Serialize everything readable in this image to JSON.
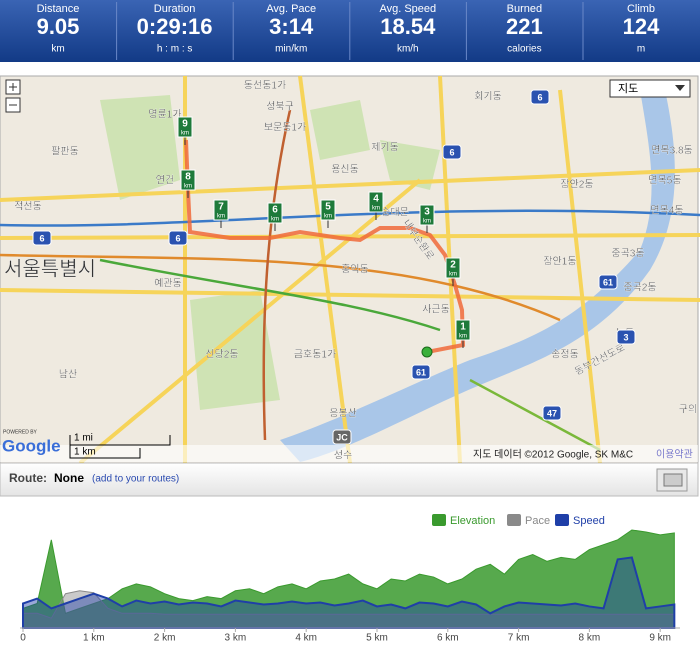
{
  "stats": [
    {
      "label": "Distance",
      "value": 9.05,
      "unit": "km"
    },
    {
      "label": "Duration",
      "value": "0:29:16",
      "unit": "h : m : s"
    },
    {
      "label": "Avg. Pace",
      "value": "3:14",
      "unit": "min/km"
    },
    {
      "label": "Avg. Speed",
      "value": 18.54,
      "unit": "km/h"
    },
    {
      "label": "Burned",
      "value": 221,
      "unit": "calories"
    },
    {
      "label": "Climb",
      "value": 124,
      "unit": "m"
    }
  ],
  "map": {
    "map_type": "지도",
    "labels": [
      "동선동1가",
      "성북구",
      "보문동1가",
      "명륜1가",
      "회기동",
      "제기동",
      "팔판동",
      "연건",
      "적선동",
      "서울특별시",
      "예관동",
      "홍익동",
      "장안2동",
      "장안1동",
      "면목3.8동",
      "면목5동",
      "면목4동",
      "중곡3동",
      "중곡2동",
      "능동",
      "송정동",
      "사근동",
      "신당2동",
      "금호동1가",
      "남산",
      "응봉산",
      "성수",
      "구의",
      "동부간선도로",
      "내부순환로",
      "용신동",
      "숭대문"
    ],
    "shields": [
      "6",
      "6",
      "6",
      "6",
      "61",
      "61",
      "3",
      "47",
      "JC"
    ],
    "markers": [
      {
        "number": 1,
        "unit": "km"
      },
      {
        "number": 2,
        "unit": "km"
      },
      {
        "number": 3,
        "unit": "km"
      },
      {
        "number": 4,
        "unit": "km"
      },
      {
        "number": 5,
        "unit": "km"
      },
      {
        "number": 6,
        "unit": "km"
      },
      {
        "number": 7,
        "unit": "km"
      },
      {
        "number": 8,
        "unit": "km"
      },
      {
        "number": 9,
        "unit": "km"
      }
    ],
    "scale_mi": "1 mi",
    "scale_km": "1 km",
    "powered_by": "POWERED BY",
    "google": "Google",
    "attribution": "지도 데이터 ©2012 Google, SK M&C",
    "terms": "이용약관"
  },
  "route": {
    "label": "Route:",
    "value": "None",
    "link": "(add to your routes)"
  },
  "chart_data": {
    "type": "area",
    "x": [
      0,
      0.2,
      0.4,
      0.6,
      0.8,
      1,
      1.2,
      1.4,
      1.6,
      1.8,
      2,
      2.2,
      2.4,
      2.6,
      2.8,
      3,
      3.2,
      3.4,
      3.6,
      3.8,
      4,
      4.2,
      4.4,
      4.6,
      4.8,
      5,
      5.2,
      5.4,
      5.6,
      5.8,
      6,
      6.2,
      6.4,
      6.6,
      6.8,
      7,
      7.2,
      7.4,
      7.6,
      7.8,
      8,
      8.2,
      8.4,
      8.6,
      8.8,
      9,
      9.2
    ],
    "series": [
      {
        "name": "Elevation",
        "color": "#3a9a2e",
        "values": [
          20,
          25,
          90,
          15,
          20,
          25,
          30,
          40,
          45,
          42,
          35,
          30,
          28,
          32,
          30,
          38,
          40,
          35,
          42,
          45,
          40,
          48,
          50,
          55,
          45,
          40,
          50,
          48,
          55,
          52,
          45,
          50,
          60,
          65,
          55,
          70,
          75,
          68,
          72,
          70,
          80,
          85,
          90,
          100,
          98,
          95,
          97
        ]
      },
      {
        "name": "Pace",
        "color": "#8a8a8a",
        "values": [
          15,
          15,
          10,
          35,
          38,
          36,
          20,
          15,
          15,
          15,
          14,
          14,
          14,
          14,
          14,
          14,
          14,
          14,
          14,
          14,
          14,
          14,
          14,
          14,
          14,
          14,
          14,
          14,
          14,
          14,
          14,
          14,
          14,
          14,
          14,
          14,
          14,
          14,
          14,
          14,
          14,
          14,
          14,
          14,
          14,
          14,
          14
        ]
      },
      {
        "name": "Speed",
        "color": "#1f3fa8",
        "values": [
          25,
          30,
          20,
          25,
          30,
          35,
          30,
          22,
          28,
          25,
          27,
          24,
          26,
          25,
          22,
          28,
          26,
          24,
          25,
          27,
          25,
          26,
          23,
          25,
          28,
          22,
          24,
          20,
          26,
          25,
          22,
          27,
          24,
          15,
          22,
          26,
          25,
          24,
          23,
          25,
          22,
          20,
          70,
          72,
          20,
          22,
          24
        ]
      }
    ],
    "xlim": [
      0,
      9.28
    ],
    "ylim": [
      0,
      100
    ],
    "xticks": [
      {
        "value": 0,
        "label": "0"
      },
      {
        "value": 1,
        "label": "1 km"
      },
      {
        "value": 2,
        "label": "2 km"
      },
      {
        "value": 3,
        "label": "3 km"
      },
      {
        "value": 4,
        "label": "4 km"
      },
      {
        "value": 5,
        "label": "5 km"
      },
      {
        "value": 6,
        "label": "6 km"
      },
      {
        "value": 7,
        "label": "7 km"
      },
      {
        "value": 8,
        "label": "8 km"
      },
      {
        "value": 9,
        "label": "9 km"
      }
    ],
    "legend": "top-right"
  }
}
